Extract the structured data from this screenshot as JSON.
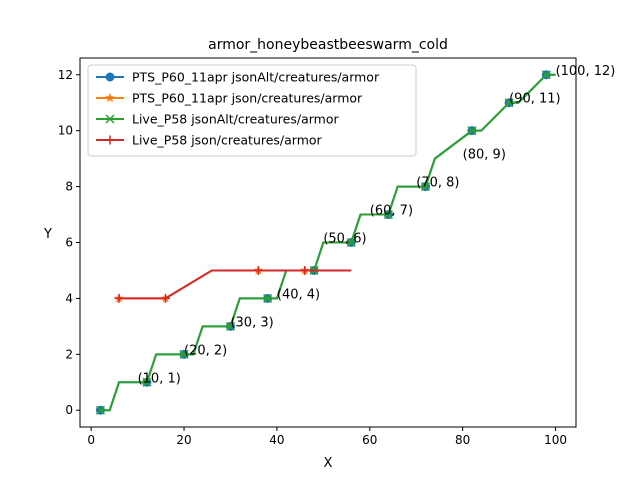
{
  "chart_data": {
    "type": "line",
    "title": "armor_honeybeastbeeswarm_cold",
    "xlabel": "X",
    "ylabel": "Y",
    "xlim": [
      -2.4,
      104.4
    ],
    "ylim": [
      -0.6,
      12.6
    ],
    "xticks": [
      0,
      20,
      40,
      60,
      80,
      100
    ],
    "yticks": [
      0,
      2,
      4,
      6,
      8,
      10,
      12
    ],
    "grid": false,
    "legend_position": "upper-left",
    "series": [
      {
        "name": "PTS_P60_11apr jsonAlt/creatures/armor",
        "color": "#1f77b4",
        "marker": "circle",
        "x": [
          2,
          4,
          6,
          12,
          14,
          20,
          22,
          24,
          30,
          32,
          38,
          40,
          42,
          48,
          50,
          56,
          58,
          64,
          66,
          72,
          74,
          82,
          84,
          90,
          92,
          98,
          100
        ],
        "y": [
          0,
          0,
          1,
          1,
          2,
          2,
          2,
          3,
          3,
          4,
          4,
          4,
          5,
          5,
          6,
          6,
          7,
          7,
          8,
          8,
          9,
          10,
          10,
          11,
          11,
          12,
          12
        ],
        "marker_x": [
          2,
          12,
          20,
          30,
          38,
          48,
          56,
          64,
          72,
          82,
          90,
          98
        ],
        "marker_y": [
          0,
          1,
          2,
          3,
          4,
          5,
          6,
          7,
          8,
          10,
          11,
          12
        ]
      },
      {
        "name": "PTS_P60_11apr json/creatures/armor",
        "color": "#ff7f0e",
        "marker": "star",
        "x": [
          6,
          16,
          26,
          36,
          46,
          56
        ],
        "y": [
          4,
          4,
          5,
          5,
          5,
          5
        ],
        "marker_x": [
          6,
          16,
          36,
          46
        ],
        "marker_y": [
          4,
          4,
          5,
          5
        ]
      },
      {
        "name": "Live_P58 jsonAlt/creatures/armor",
        "color": "#2ca02c",
        "marker": "x",
        "x": [
          2,
          4,
          6,
          12,
          14,
          20,
          22,
          24,
          30,
          32,
          38,
          40,
          42,
          48,
          50,
          56,
          58,
          64,
          66,
          72,
          74,
          82,
          84,
          90,
          92,
          98,
          100
        ],
        "y": [
          0,
          0,
          1,
          1,
          2,
          2,
          2,
          3,
          3,
          4,
          4,
          4,
          5,
          5,
          6,
          6,
          7,
          7,
          8,
          8,
          9,
          10,
          10,
          11,
          11,
          12,
          12
        ],
        "marker_x": [
          2,
          12,
          20,
          30,
          38,
          48,
          56,
          64,
          72,
          82,
          90,
          98
        ],
        "marker_y": [
          0,
          1,
          2,
          3,
          4,
          5,
          6,
          7,
          8,
          10,
          11,
          12
        ]
      },
      {
        "name": "Live_P58 json/creatures/armor",
        "color": "#d62728",
        "marker": "plus",
        "x": [
          6,
          16,
          26,
          36,
          46,
          56
        ],
        "y": [
          4,
          4,
          5,
          5,
          5,
          5
        ],
        "marker_x": [
          6,
          16,
          36,
          46
        ],
        "marker_y": [
          4,
          4,
          5,
          5
        ]
      }
    ],
    "annotations": [
      {
        "text": "(10, 1)",
        "x": 10,
        "y": 1
      },
      {
        "text": "(20, 2)",
        "x": 20,
        "y": 2
      },
      {
        "text": "(30, 3)",
        "x": 30,
        "y": 3
      },
      {
        "text": "(40, 4)",
        "x": 40,
        "y": 4
      },
      {
        "text": "(50, 6)",
        "x": 50,
        "y": 6
      },
      {
        "text": "(60, 7)",
        "x": 60,
        "y": 7
      },
      {
        "text": "(70, 8)",
        "x": 70,
        "y": 8
      },
      {
        "text": "(80, 9)",
        "x": 80,
        "y": 9
      },
      {
        "text": "(90, 11)",
        "x": 90,
        "y": 11
      },
      {
        "text": "(100, 12)",
        "x": 100,
        "y": 12
      }
    ]
  }
}
